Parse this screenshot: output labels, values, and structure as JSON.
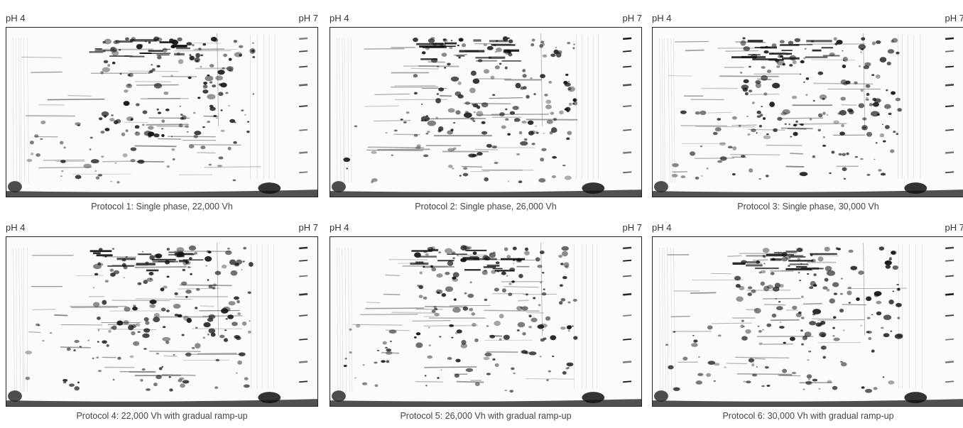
{
  "gels": [
    {
      "ph_left": "pH 4",
      "ph_right": "pH 7",
      "caption": "Protocol 1: Single phase, 22,000 Vh"
    },
    {
      "ph_left": "pH 4",
      "ph_right": "pH 7",
      "caption": "Protocol 2: Single phase, 26,000 Vh"
    },
    {
      "ph_left": "pH 4",
      "ph_right": "pH 7",
      "caption": "Protocol 3: Single phase, 30,000 Vh"
    },
    {
      "ph_left": "pH 4",
      "ph_right": "pH 7",
      "caption": "Protocol 4: 22,000 Vh with gradual ramp-up"
    },
    {
      "ph_left": "pH 4",
      "ph_right": "pH 7",
      "caption": "Protocol 5: 26,000 Vh with gradual ramp-up"
    },
    {
      "ph_left": "pH 4",
      "ph_right": "pH 7",
      "caption": "Protocol 6: 30,000 Vh with gradual ramp-up"
    }
  ]
}
